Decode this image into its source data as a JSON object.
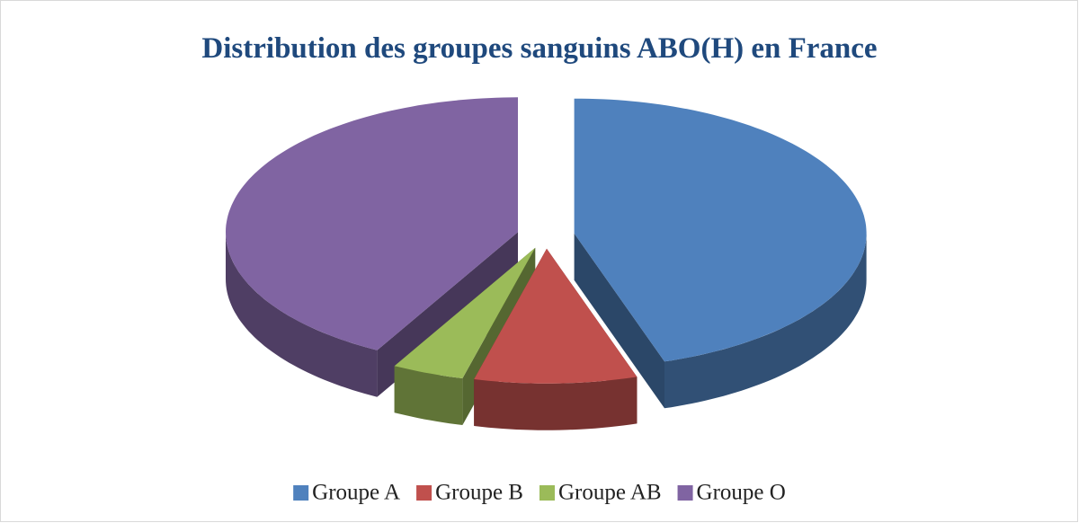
{
  "chart_data": {
    "type": "pie",
    "title": "Distribution des groupes sanguins ABO(H) en France",
    "categories": [
      "Groupe A",
      "Groupe B",
      "Groupe AB",
      "Groupe O"
    ],
    "values": [
      45,
      9,
      4,
      42
    ],
    "colors": [
      "#4f81bd",
      "#c0504d",
      "#9bbb59",
      "#8064a2"
    ],
    "legend": "bottom"
  }
}
